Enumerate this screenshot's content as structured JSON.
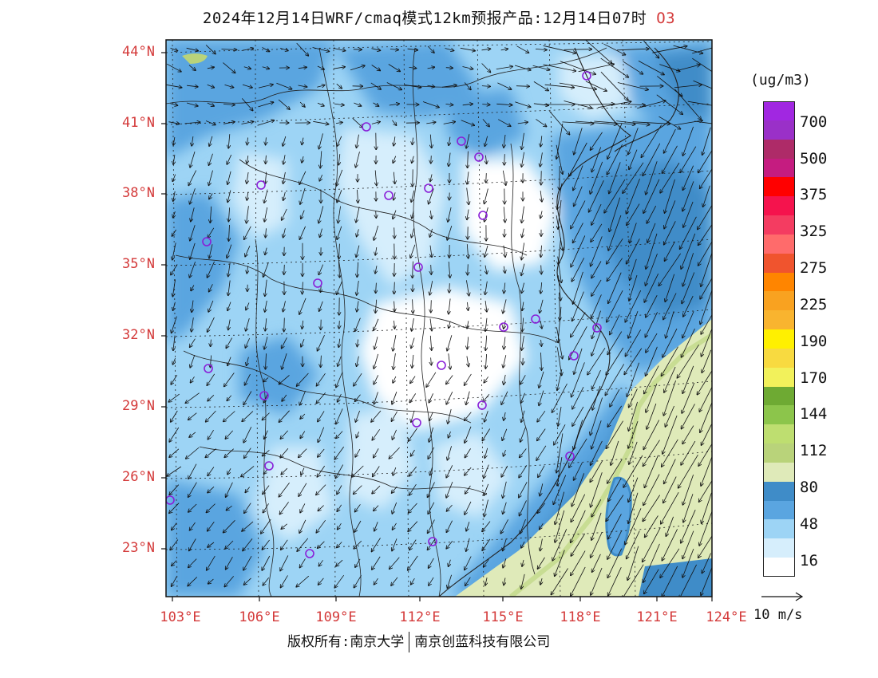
{
  "title": {
    "main": "2024年12月14日WRF/cmaq模式12km预报产品:12月14日07时",
    "pollutant": "O3"
  },
  "axes": {
    "lat_labels": [
      "44°N",
      "41°N",
      "38°N",
      "35°N",
      "32°N",
      "29°N",
      "26°N",
      "23°N"
    ],
    "lon_labels": [
      "103°E",
      "106°E",
      "109°E",
      "112°E",
      "115°E",
      "118°E",
      "121°E",
      "124°E"
    ],
    "label_color": "#d43a3a"
  },
  "colorbar": {
    "unit": "(ug/m3)",
    "colors": [
      "#a127e1",
      "#9a30c8",
      "#ae2b68",
      "#c51c80",
      "#ff0000",
      "#f5134d",
      "#f43c61",
      "#ff6b6b",
      "#f0542e",
      "#ff8500",
      "#f9a220",
      "#f9b42f",
      "#fff000",
      "#f8da40",
      "#f2f15b",
      "#6eaa33",
      "#8cc54b",
      "#bede70",
      "#b9d37a",
      "#dfeab9",
      "#3f8cc8",
      "#5aa5e0",
      "#9dd4f5",
      "#d6eefc",
      "#ffffff"
    ],
    "labels": [
      "700",
      "500",
      "375",
      "325",
      "275",
      "225",
      "190",
      "170",
      "144",
      "112",
      "80",
      "48",
      "16"
    ]
  },
  "wind_scale": {
    "label": "10 m/s"
  },
  "sites": 25,
  "footer": {
    "left": "版权所有:南京大学",
    "right": "南京创蓝科技有限公司"
  }
}
